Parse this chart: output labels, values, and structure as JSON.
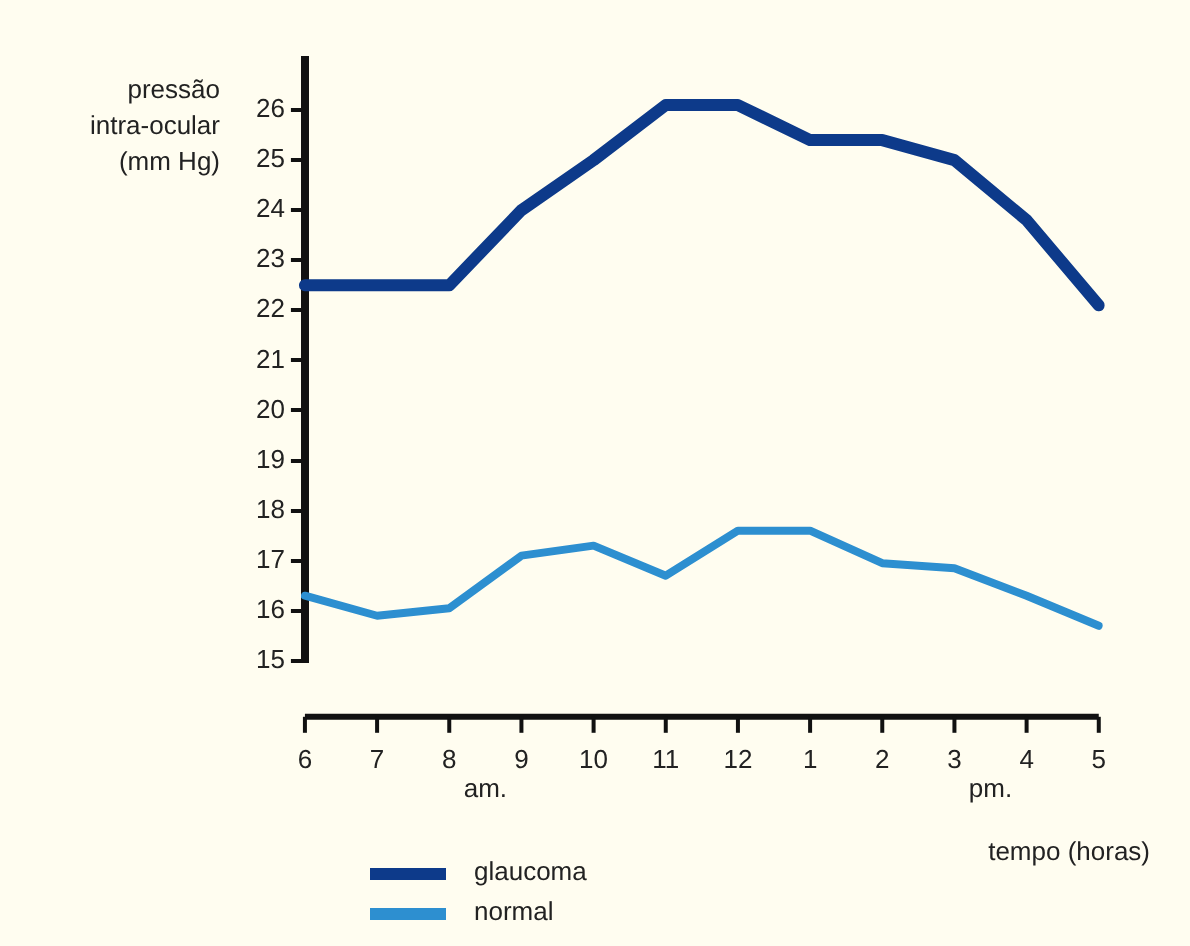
{
  "chart_data": {
    "type": "line",
    "ylabel": "pressão\nintra-ocular\n(mm Hg)",
    "xlabel": "tempo (horas)",
    "categories": [
      "6",
      "7",
      "8",
      "9",
      "10",
      "11",
      "12",
      "1",
      "2",
      "3",
      "4",
      "5"
    ],
    "series": [
      {
        "name": "glaucoma",
        "color": "#0d3a8a",
        "values": [
          22.5,
          22.5,
          22.5,
          24,
          25,
          26.1,
          26.1,
          25.4,
          25.4,
          25,
          23.8,
          22.1
        ]
      },
      {
        "name": "normal",
        "color": "#2d8fd0",
        "values": [
          16.3,
          15.9,
          16.05,
          17.1,
          17.3,
          16.7,
          17.6,
          17.6,
          16.95,
          16.85,
          16.3,
          15.7
        ]
      }
    ],
    "ylim": [
      15,
      27
    ],
    "yticks": [
      15,
      16,
      17,
      18,
      19,
      20,
      21,
      22,
      23,
      24,
      25,
      26
    ],
    "annotations": [
      "am.",
      "pm."
    ],
    "legend": "bottom left",
    "grid": false,
    "marker": "none",
    "line_style": "solid"
  }
}
